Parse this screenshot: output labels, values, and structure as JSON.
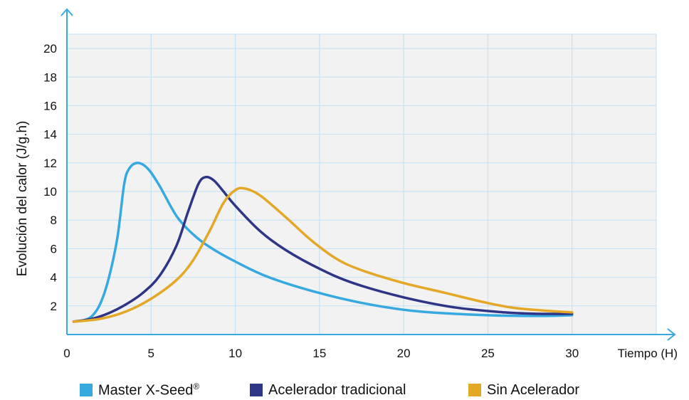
{
  "chart_data": {
    "type": "line",
    "title": "",
    "xlabel": "Tiempo (H)",
    "ylabel": "Evolución del calor (J/g.h)",
    "xlim": [
      0,
      35
    ],
    "ylim": [
      0,
      21
    ],
    "xticks": [
      0,
      5,
      10,
      15,
      20,
      25,
      30
    ],
    "yticks": [
      2,
      4,
      6,
      8,
      10,
      12,
      14,
      16,
      18,
      20
    ],
    "grid": true,
    "legend_position": "bottom",
    "background_color": "#f2f2f2",
    "grid_color": "#bfe0f5",
    "axis_color": "#36a9e1",
    "series": [
      {
        "name": "Master X-Seed®",
        "color": "#36a9e1",
        "points": [
          [
            0.4,
            0.9
          ],
          [
            1,
            1.0
          ],
          [
            1.5,
            1.3
          ],
          [
            2,
            2.2
          ],
          [
            2.5,
            4.0
          ],
          [
            3,
            6.8
          ],
          [
            3.4,
            10.5
          ],
          [
            3.7,
            11.6
          ],
          [
            4.2,
            12.0
          ],
          [
            4.8,
            11.6
          ],
          [
            5.5,
            10.4
          ],
          [
            6.5,
            8.3
          ],
          [
            7.5,
            7.0
          ],
          [
            8.5,
            6.1
          ],
          [
            10,
            5.1
          ],
          [
            12,
            4.0
          ],
          [
            15,
            2.9
          ],
          [
            18,
            2.1
          ],
          [
            21,
            1.6
          ],
          [
            25,
            1.35
          ],
          [
            28,
            1.3
          ],
          [
            30,
            1.35
          ]
        ]
      },
      {
        "name": "Acelerador tradicional",
        "color": "#2e3586",
        "points": [
          [
            0.4,
            0.9
          ],
          [
            1.5,
            1.1
          ],
          [
            2.5,
            1.5
          ],
          [
            3.5,
            2.1
          ],
          [
            4.5,
            2.9
          ],
          [
            5.5,
            4.1
          ],
          [
            6.5,
            6.2
          ],
          [
            7.2,
            8.6
          ],
          [
            7.8,
            10.5
          ],
          [
            8.2,
            11.0
          ],
          [
            8.7,
            10.8
          ],
          [
            9.3,
            10.0
          ],
          [
            10,
            9.0
          ],
          [
            11.5,
            7.2
          ],
          [
            13,
            5.9
          ],
          [
            15,
            4.6
          ],
          [
            17,
            3.6
          ],
          [
            20,
            2.6
          ],
          [
            23,
            1.9
          ],
          [
            26,
            1.55
          ],
          [
            28,
            1.45
          ],
          [
            30,
            1.45
          ]
        ]
      },
      {
        "name": "Sin Acelerador",
        "color": "#e4a726",
        "points": [
          [
            0.4,
            0.9
          ],
          [
            2,
            1.1
          ],
          [
            3.5,
            1.6
          ],
          [
            5,
            2.5
          ],
          [
            6.5,
            3.8
          ],
          [
            7.5,
            5.2
          ],
          [
            8.5,
            7.3
          ],
          [
            9.3,
            9.2
          ],
          [
            10,
            10.1
          ],
          [
            10.6,
            10.2
          ],
          [
            11.5,
            9.7
          ],
          [
            13,
            8.2
          ],
          [
            14.5,
            6.6
          ],
          [
            16,
            5.3
          ],
          [
            17.5,
            4.5
          ],
          [
            20,
            3.6
          ],
          [
            22.5,
            2.9
          ],
          [
            25,
            2.2
          ],
          [
            27,
            1.8
          ],
          [
            30,
            1.55
          ]
        ]
      }
    ]
  }
}
